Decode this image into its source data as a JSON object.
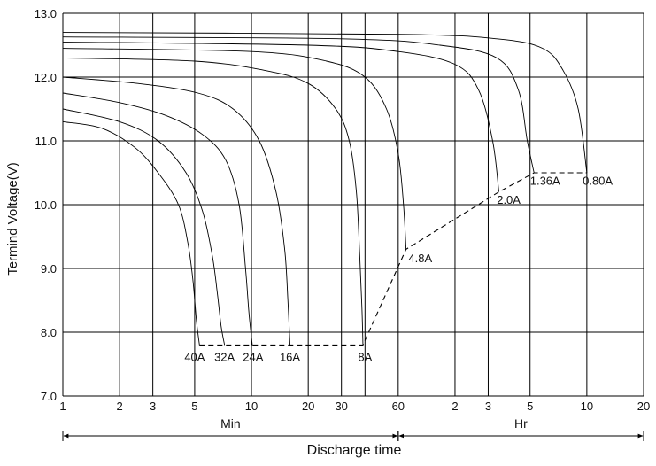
{
  "chart_data": {
    "type": "line",
    "ylabel": "Termind Voltage(V)",
    "xlabel": "Discharge time",
    "ylim": [
      7.0,
      13.0
    ],
    "y_ticks": [
      "7.0",
      "8.0",
      "9.0",
      "10.0",
      "11.0",
      "12.0",
      "13.0"
    ],
    "x_scale": "log (minutes 1–60, then hours 1–20)",
    "x_ticks": [
      {
        "label": "1",
        "min": 1
      },
      {
        "label": "2",
        "min": 2
      },
      {
        "label": "3",
        "min": 3
      },
      {
        "label": "5",
        "min": 5
      },
      {
        "label": "10",
        "min": 10
      },
      {
        "label": "20",
        "min": 20
      },
      {
        "label": "30",
        "min": 30
      },
      {
        "label": "60",
        "min": 60
      },
      {
        "label": "2",
        "min": 120
      },
      {
        "label": "3",
        "min": 180
      },
      {
        "label": "5",
        "min": 300
      },
      {
        "label": "10",
        "min": 600
      },
      {
        "label": "20",
        "min": 1200
      }
    ],
    "extra_vgrid_min": [
      40,
      6000
    ],
    "x_sections": [
      {
        "label": "Min",
        "from_min": 1,
        "to_min": 60
      },
      {
        "label": "Hr",
        "from_min": 60,
        "to_min": 1200
      }
    ],
    "grid": true,
    "series": [
      {
        "name": "40A",
        "label_at": [
          5.0,
          7.62
        ],
        "points": [
          [
            1,
            11.3
          ],
          [
            1.6,
            11.2
          ],
          [
            2.4,
            10.9
          ],
          [
            3.2,
            10.5
          ],
          [
            4.1,
            10.0
          ],
          [
            4.6,
            9.4
          ],
          [
            4.9,
            8.8
          ],
          [
            5.1,
            8.2
          ],
          [
            5.3,
            7.8
          ]
        ]
      },
      {
        "name": "32A",
        "label_at": [
          7.2,
          7.62
        ],
        "points": [
          [
            1,
            11.5
          ],
          [
            2,
            11.3
          ],
          [
            3.2,
            11.0
          ],
          [
            4.5,
            10.5
          ],
          [
            5.5,
            9.9
          ],
          [
            6.2,
            9.2
          ],
          [
            6.6,
            8.6
          ],
          [
            6.9,
            8.1
          ],
          [
            7.2,
            7.8
          ]
        ]
      },
      {
        "name": "24A",
        "label_at": [
          10.2,
          7.62
        ],
        "points": [
          [
            1,
            11.75
          ],
          [
            2,
            11.6
          ],
          [
            3.5,
            11.4
          ],
          [
            5.5,
            11.1
          ],
          [
            7.3,
            10.7
          ],
          [
            8.6,
            10.0
          ],
          [
            9.3,
            9.0
          ],
          [
            9.7,
            8.3
          ],
          [
            10.1,
            7.8
          ]
        ]
      },
      {
        "name": "16A",
        "label_at": [
          16,
          7.62
        ],
        "points": [
          [
            1,
            12.0
          ],
          [
            2.5,
            11.9
          ],
          [
            5.2,
            11.75
          ],
          [
            8,
            11.5
          ],
          [
            11,
            11.0
          ],
          [
            13.5,
            10.2
          ],
          [
            15,
            9.3
          ],
          [
            15.6,
            8.5
          ],
          [
            16,
            7.8
          ]
        ]
      },
      {
        "name": "8A",
        "label_at": [
          40,
          7.62
        ],
        "points": [
          [
            1,
            12.3
          ],
          [
            5,
            12.25
          ],
          [
            12,
            12.1
          ],
          [
            20,
            11.9
          ],
          [
            28,
            11.5
          ],
          [
            33,
            11.0
          ],
          [
            36,
            10.2
          ],
          [
            37.5,
            9.2
          ],
          [
            38.5,
            8.4
          ],
          [
            39,
            7.8
          ]
        ]
      },
      {
        "name": "4.8A",
        "label_at": [
          68,
          9.17
        ],
        "points": [
          [
            1,
            12.45
          ],
          [
            10,
            12.4
          ],
          [
            25,
            12.25
          ],
          [
            40,
            12.0
          ],
          [
            52,
            11.5
          ],
          [
            60,
            10.8
          ],
          [
            64,
            10.0
          ],
          [
            66,
            9.3
          ]
        ]
      },
      {
        "name": "2.0A",
        "label_at": [
          200,
          10.08
        ],
        "points": [
          [
            1,
            12.55
          ],
          [
            20,
            12.5
          ],
          [
            60,
            12.4
          ],
          [
            120,
            12.2
          ],
          [
            160,
            11.8
          ],
          [
            190,
            11.0
          ],
          [
            205,
            10.2
          ]
        ]
      },
      {
        "name": "1.36A",
        "label_at": [
          300,
          10.38
        ],
        "points": [
          [
            1,
            12.63
          ],
          [
            30,
            12.6
          ],
          [
            100,
            12.5
          ],
          [
            200,
            12.3
          ],
          [
            260,
            11.8
          ],
          [
            290,
            11.0
          ],
          [
            315,
            10.5
          ]
        ]
      },
      {
        "name": "0.80A",
        "label_at": [
          570,
          10.38
        ],
        "points": [
          [
            1,
            12.7
          ],
          [
            60,
            12.67
          ],
          [
            200,
            12.6
          ],
          [
            350,
            12.45
          ],
          [
            450,
            12.1
          ],
          [
            540,
            11.5
          ],
          [
            600,
            10.5
          ]
        ]
      }
    ],
    "end_voltage_line": [
      [
        5.3,
        7.8
      ],
      [
        39,
        7.8
      ],
      [
        66,
        9.3
      ],
      [
        205,
        10.2
      ],
      [
        315,
        10.5
      ],
      [
        600,
        10.5
      ]
    ]
  }
}
